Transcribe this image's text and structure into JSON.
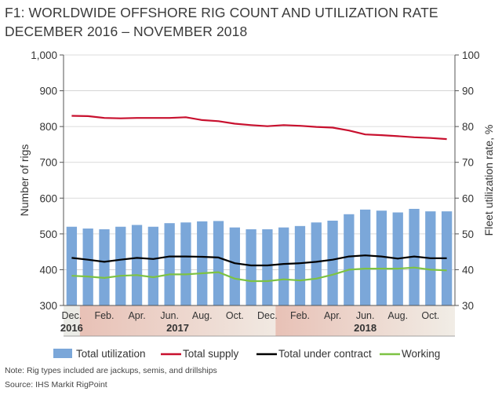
{
  "title_line1": "F1: WORLDWIDE OFFSHORE RIG COUNT AND UTILIZATION RATE",
  "title_line2": "DECEMBER 2016 – NOVEMBER 2018",
  "note": "Note: Rig types included are jackups, semis, and drillships",
  "source": "Source: IHS Markit RigPoint",
  "colors": {
    "bar": "#7ba7d9",
    "supply": "#c8102e",
    "contract": "#000000",
    "working": "#7dc243",
    "band": "#e8c1b6"
  },
  "chart_data": {
    "type": "bar+line",
    "ylabel": "Number of rigs",
    "y2label": "Fleet utilization rate, %",
    "ylim": [
      300,
      1000
    ],
    "y2lim": [
      30,
      100
    ],
    "yticks": [
      "300",
      "400",
      "500",
      "600",
      "700",
      "800",
      "900",
      "1,000"
    ],
    "y2ticks": [
      "30",
      "40",
      "50",
      "60",
      "70",
      "80",
      "90",
      "100"
    ],
    "x_tick_labels": [
      "Dec.",
      "Feb.",
      "Apr.",
      "Jun.",
      "Aug.",
      "Oct.",
      "Dec.",
      "Feb.",
      "Apr.",
      "Jun.",
      "Aug.",
      "Oct."
    ],
    "year_labels": [
      "2016",
      "2017",
      "2018"
    ],
    "months": [
      "Dec 2016",
      "Jan 2017",
      "Feb 2017",
      "Mar 2017",
      "Apr 2017",
      "May 2017",
      "Jun 2017",
      "Jul 2017",
      "Aug 2017",
      "Sep 2017",
      "Oct 2017",
      "Nov 2017",
      "Dec 2017",
      "Jan 2018",
      "Feb 2018",
      "Mar 2018",
      "Apr 2018",
      "May 2018",
      "Jun 2018",
      "Jul 2018",
      "Aug 2018",
      "Sep 2018",
      "Oct 2018",
      "Nov 2018"
    ],
    "series": [
      {
        "name": "Total utilization",
        "type": "bar",
        "axis": "right",
        "values": [
          52,
          51.5,
          51.3,
          52,
          52.5,
          52,
          53,
          53.2,
          53.5,
          53.6,
          51.8,
          51.3,
          51.3,
          51.8,
          52.2,
          53.2,
          53.7,
          55.5,
          56.8,
          56.5,
          56,
          57,
          56.3,
          56.3
        ]
      },
      {
        "name": "Total supply",
        "type": "line",
        "axis": "left",
        "values": [
          830,
          829,
          824,
          823,
          824,
          824,
          824,
          826,
          818,
          815,
          808,
          804,
          801,
          804,
          802,
          799,
          797,
          789,
          778,
          776,
          773,
          770,
          768,
          765
        ]
      },
      {
        "name": "Total under contract",
        "type": "line",
        "axis": "left",
        "values": [
          433,
          428,
          422,
          428,
          433,
          430,
          437,
          437,
          436,
          434,
          418,
          412,
          412,
          416,
          418,
          422,
          428,
          437,
          440,
          437,
          431,
          437,
          432,
          432
        ]
      },
      {
        "name": "Working",
        "type": "line",
        "axis": "left",
        "values": [
          383,
          381,
          377,
          383,
          385,
          379,
          387,
          387,
          390,
          393,
          375,
          368,
          368,
          373,
          370,
          375,
          386,
          400,
          403,
          403,
          403,
          406,
          400,
          398
        ]
      }
    ]
  }
}
